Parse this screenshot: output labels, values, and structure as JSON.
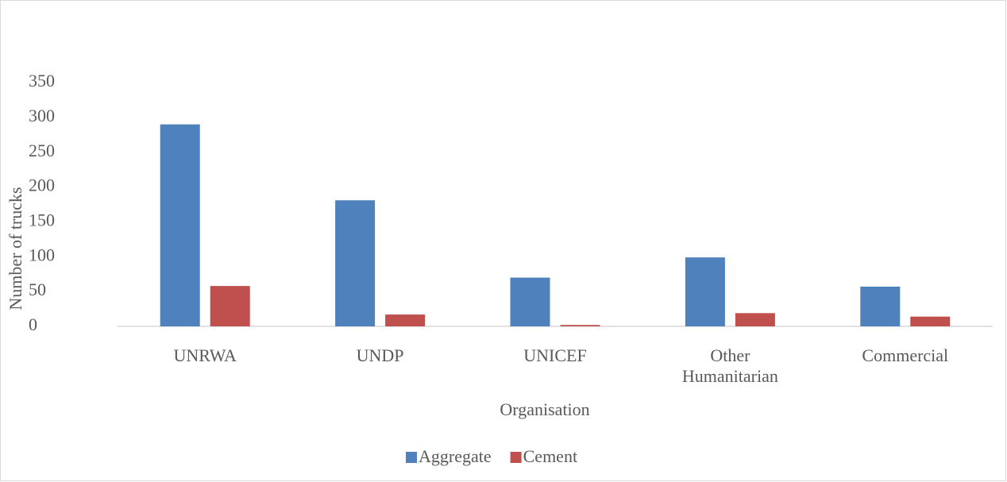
{
  "chart_data": {
    "type": "bar",
    "x_label": "Organisation",
    "y_label": "Number of trucks",
    "categories": [
      "UNRWA",
      "UNDP",
      "UNICEF",
      "Other Humanitarian",
      "Commercial"
    ],
    "series": [
      {
        "name": "Aggregate",
        "color": "#4f81bd",
        "values": [
          290,
          181,
          70,
          99,
          57
        ]
      },
      {
        "name": "Cement",
        "color": "#c0504d",
        "values": [
          58,
          17,
          2,
          19,
          14
        ]
      }
    ],
    "ylim": [
      0,
      350
    ],
    "yticks": [
      0,
      50,
      100,
      150,
      200,
      250,
      300,
      350
    ],
    "grid": false,
    "legend": "bottom"
  }
}
